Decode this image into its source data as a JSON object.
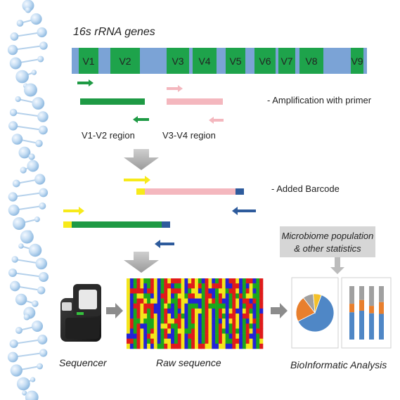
{
  "title": "16s rRNA genes",
  "regions": [
    "V1",
    "V2",
    "V3",
    "V4",
    "V5",
    "V6",
    "V7",
    "V8",
    "V9"
  ],
  "labels": {
    "amplification": "- Amplification with primer",
    "v1v2_region": "V1-V2 region",
    "v3v4_region": "V3-V4 region",
    "barcode": "- Added Barcode",
    "stats_line1": "Microbiome population",
    "stats_line2": "& other statistics",
    "sequencer": "Sequencer",
    "raw_sequence": "Raw sequence",
    "bioinformatic": "BioInformatic Analysis"
  },
  "colors": {
    "gene_bar": "#7ba3d6",
    "region_box": "#1ea34b",
    "v1v2_amplicon": "#1e9a44",
    "v3v4_amplicon": "#f4b7be",
    "primer_forward_green": "#1e9a44",
    "primer_forward_pink": "#f4b7be",
    "barcode_yellow": "#f7ea1a",
    "barcode_blue": "#2e5b9c",
    "flow_arrow": "#b0b0b0",
    "pie_blue": "#4f87c6",
    "pie_orange": "#e87f2d",
    "pie_gray": "#a0a0a0",
    "pie_yellow": "#f3c02a"
  },
  "icons": [
    "dna-helix-icon",
    "sequencer-icon",
    "pie-chart-icon",
    "stacked-bar-icon"
  ],
  "pie_shares": [
    {
      "name": "blue",
      "share": 0.62
    },
    {
      "name": "orange",
      "share": 0.22
    },
    {
      "name": "gray",
      "share": 0.09
    },
    {
      "name": "yellow",
      "share": 0.07
    }
  ],
  "stack_columns": [
    [
      0.33,
      0.16,
      0.51
    ],
    [
      0.26,
      0.2,
      0.54
    ],
    [
      0.37,
      0.14,
      0.49
    ],
    [
      0.3,
      0.22,
      0.48
    ]
  ]
}
